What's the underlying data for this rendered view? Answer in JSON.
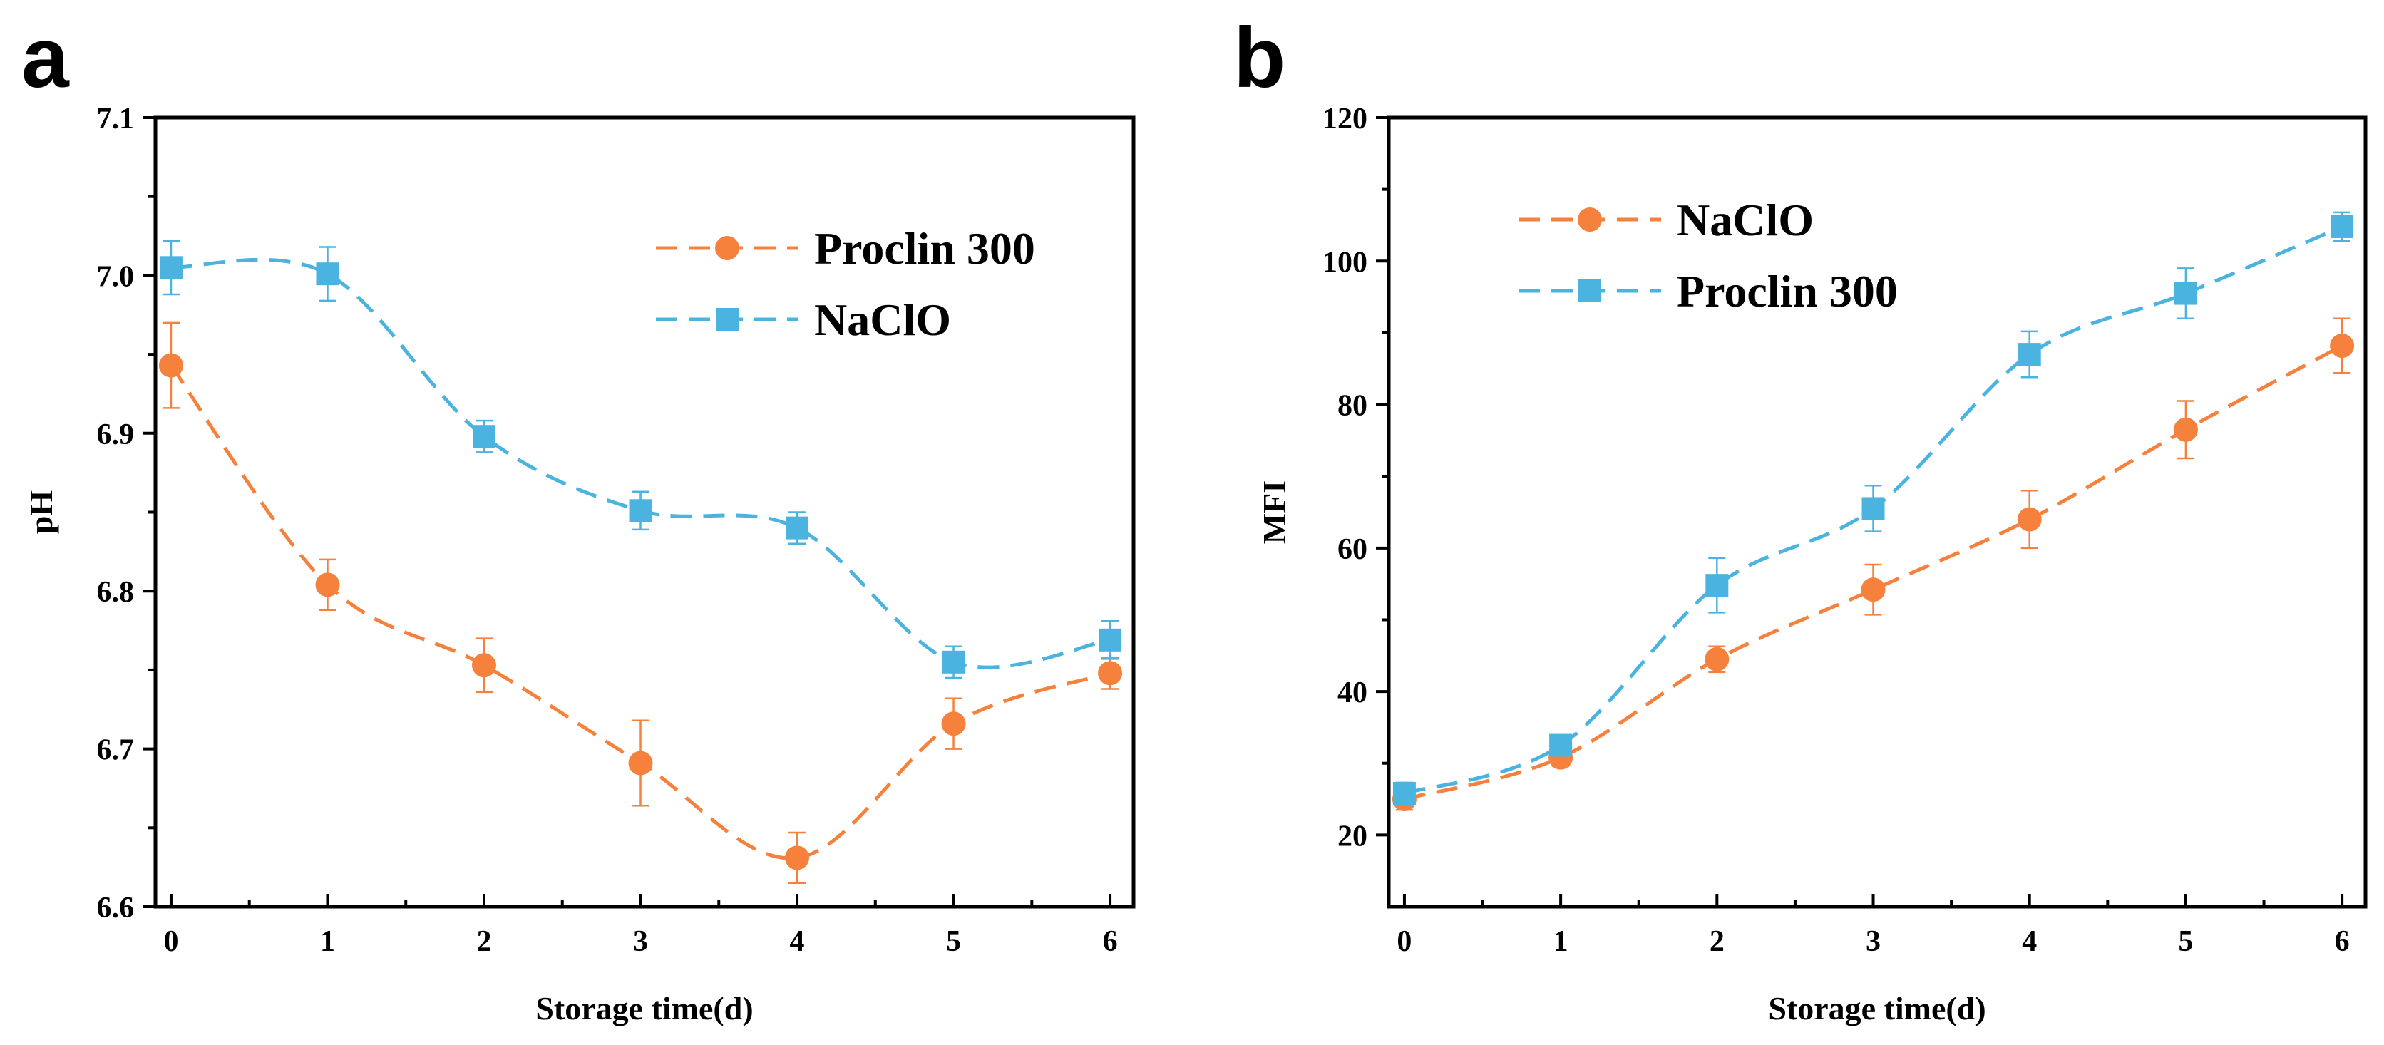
{
  "colors": {
    "orange": "#f5813c",
    "blue": "#4bb3e0",
    "axis": "#000000"
  },
  "chart_data": [
    {
      "panel": "a",
      "type": "line",
      "title": "",
      "xlabel": "Storage time(d)",
      "ylabel": "pH",
      "xlim": [
        -0.1,
        6.15
      ],
      "ylim": [
        6.6,
        7.1
      ],
      "xticks": [
        0,
        1,
        2,
        3,
        4,
        5,
        6
      ],
      "yticks": [
        6.6,
        6.7,
        6.8,
        6.9,
        7.0,
        7.1
      ],
      "ytick_labels": [
        "6.6",
        "6.7",
        "6.8",
        "6.9",
        "7.0",
        "7.1"
      ],
      "grid": false,
      "legend_position": "top-right",
      "series": [
        {
          "name": "Proclin 300",
          "marker": "circle",
          "color": "orange",
          "x": [
            0,
            1,
            2,
            3,
            4,
            5,
            6
          ],
          "values": [
            6.943,
            6.804,
            6.753,
            6.691,
            6.631,
            6.716,
            6.748
          ],
          "errors": [
            0.027,
            0.016,
            0.017,
            0.027,
            0.016,
            0.016,
            0.01
          ]
        },
        {
          "name": "NaClO",
          "marker": "square",
          "color": "blue",
          "x": [
            0,
            1,
            2,
            3,
            4,
            5,
            6
          ],
          "values": [
            7.005,
            7.001,
            6.898,
            6.851,
            6.84,
            6.755,
            6.769
          ],
          "errors": [
            0.017,
            0.017,
            0.01,
            0.012,
            0.01,
            0.01,
            0.012
          ]
        }
      ]
    },
    {
      "panel": "b",
      "type": "line",
      "title": "",
      "xlabel": "Storage time(d)",
      "ylabel": "MFI",
      "xlim": [
        -0.1,
        6.15
      ],
      "ylim": [
        10,
        120
      ],
      "xticks": [
        0,
        1,
        2,
        3,
        4,
        5,
        6
      ],
      "yticks": [
        20,
        40,
        60,
        80,
        100,
        120
      ],
      "ytick_labels": [
        "20",
        "40",
        "60",
        "80",
        "100",
        "120"
      ],
      "grid": false,
      "legend_position": "top-left",
      "series": [
        {
          "name": "NaClO",
          "marker": "circle",
          "color": "orange",
          "x": [
            0,
            1,
            2,
            3,
            4,
            5,
            6
          ],
          "values": [
            25,
            30.8,
            44.5,
            54.2,
            64.0,
            76.5,
            88.2
          ],
          "errors": [
            1.5,
            1.2,
            1.8,
            3.5,
            4.0,
            4.0,
            3.8
          ]
        },
        {
          "name": "Proclin 300",
          "marker": "square",
          "color": "blue",
          "x": [
            0,
            1,
            2,
            3,
            4,
            5,
            6
          ],
          "values": [
            25.8,
            32.5,
            54.8,
            65.5,
            87.0,
            95.5,
            104.8
          ],
          "errors": [
            1.5,
            1.2,
            3.8,
            3.2,
            3.2,
            3.5,
            2.0
          ]
        }
      ]
    }
  ]
}
